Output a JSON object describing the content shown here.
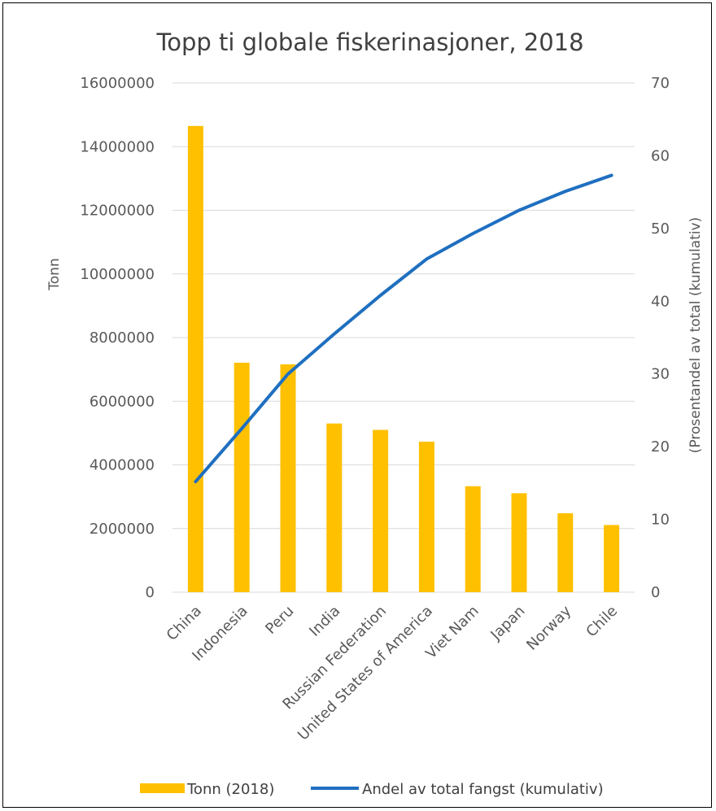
{
  "chart_data": {
    "type": "bar",
    "title": "Topp ti globale fiskerinasjoner, 2018",
    "xlabel": "",
    "ylabel": "Tonn",
    "y2label": "(Prosentandel av total (kumulativ)",
    "ylim": [
      0,
      16000000
    ],
    "y2lim": [
      0,
      70
    ],
    "yticks": [
      "0",
      "2000000",
      "4000000",
      "6000000",
      "8000000",
      "10000000",
      "12000000",
      "14000000",
      "16000000"
    ],
    "y2ticks": [
      "0",
      "10",
      "20",
      "30",
      "40",
      "50",
      "60",
      "70"
    ],
    "grid": true,
    "legend_position": "bottom",
    "categories": [
      "China",
      "Indonesia",
      "Peru",
      "India",
      "Russian Federation",
      "United States of America",
      "Viet Nam",
      "Japan",
      "Norway",
      "Chile"
    ],
    "series": [
      {
        "name": "Tonn (2018)",
        "type": "bar",
        "axis": "left",
        "color": "#FFC000",
        "values": [
          14650000,
          7210000,
          7160000,
          5300000,
          5100000,
          4730000,
          3330000,
          3110000,
          2480000,
          2110000
        ]
      },
      {
        "name": "Andel av total fangst (kumulativ)",
        "type": "line",
        "axis": "right",
        "color": "#1F6FC0",
        "values": [
          15.2,
          22.5,
          30.0,
          35.5,
          40.8,
          45.8,
          49.3,
          52.5,
          55.1,
          57.3
        ]
      }
    ]
  },
  "colors": {
    "grid": "#D9D9D9",
    "text": "#595959"
  }
}
